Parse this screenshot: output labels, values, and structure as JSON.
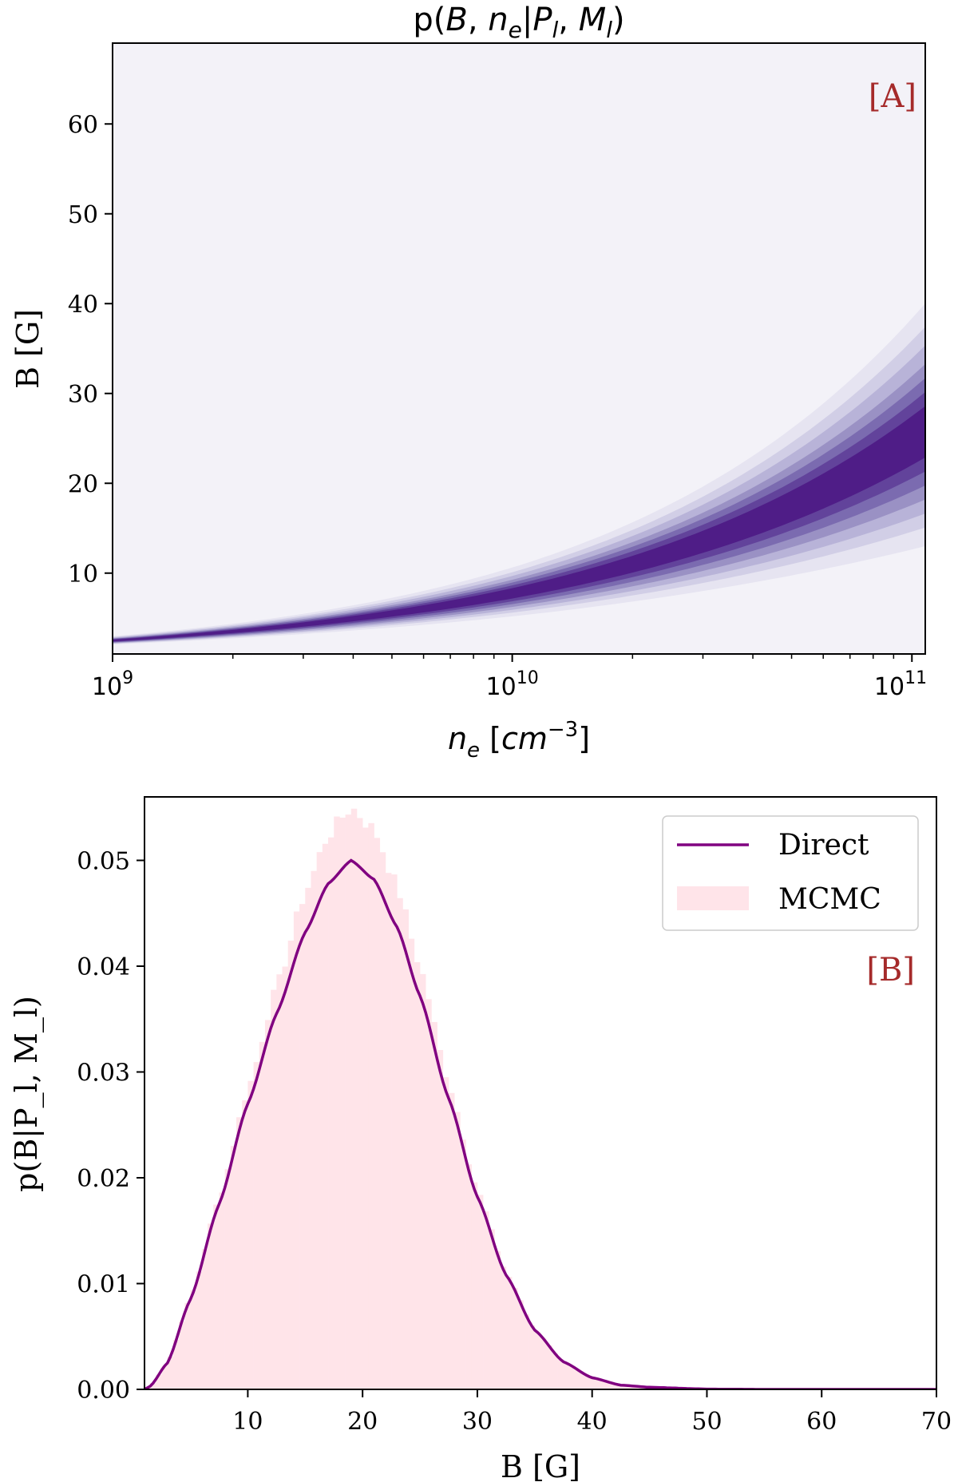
{
  "chart_data": [
    {
      "id": "A",
      "type": "contour",
      "title": "p(B, n_e | P_l, M_l)",
      "panel_label": "[A]",
      "xlabel": "n_e [cm^-3]",
      "ylabel": "B [G]",
      "xscale": "log",
      "xlim": [
        1000000000.0,
        108000000000.0
      ],
      "ylim": [
        1,
        69
      ],
      "xticks": [
        {
          "value": 1000000000.0,
          "base": "10",
          "exp": "9"
        },
        {
          "value": 10000000000.0,
          "base": "10",
          "exp": "10"
        },
        {
          "value": 100000000000.0,
          "base": "10",
          "exp": "11"
        }
      ],
      "yticks": [
        10,
        20,
        30,
        40,
        50,
        60
      ],
      "ridge": {
        "n_e": [
          1000000000.0,
          10000000000.0,
          100000000000.0
        ],
        "B": [
          2.5,
          7.8,
          25
        ]
      },
      "contour_levels": [
        {
          "level": 1,
          "lower_at_1e11": 12.5,
          "upper_at_1e11": 38.5,
          "color": "#e6e4f1"
        },
        {
          "level": 2,
          "lower_at_1e11": 14.5,
          "upper_at_1e11": 36.0,
          "color": "#d1cee6"
        },
        {
          "level": 3,
          "lower_at_1e11": 16.0,
          "upper_at_1e11": 34.0,
          "color": "#b8b3d8"
        },
        {
          "level": 4,
          "lower_at_1e11": 17.5,
          "upper_at_1e11": 32.0,
          "color": "#9a91c4"
        },
        {
          "level": 5,
          "lower_at_1e11": 19.0,
          "upper_at_1e11": 30.5,
          "color": "#7b6bb0"
        },
        {
          "level": 6,
          "lower_at_1e11": 20.5,
          "upper_at_1e11": 29.0,
          "color": "#62439b"
        },
        {
          "level": 7,
          "lower_at_1e11": 22.0,
          "upper_at_1e11": 27.5,
          "color": "#4f1d87"
        }
      ],
      "background_color": "#f3f2f8"
    },
    {
      "id": "B",
      "type": "line+histogram",
      "panel_label": "[B]",
      "xlabel": "B [G]",
      "ylabel": "p(B|P_l, M_l)",
      "xlim": [
        1,
        70
      ],
      "ylim": [
        0,
        0.056
      ],
      "xticks": [
        10,
        20,
        30,
        40,
        50,
        60,
        70
      ],
      "yticks": [
        "0.00",
        "0.01",
        "0.02",
        "0.03",
        "0.04",
        "0.05"
      ],
      "series": [
        {
          "name": "Direct",
          "kind": "line",
          "color": "#800080",
          "B": [
            1.5,
            3,
            5,
            7.5,
            10,
            12.5,
            15,
            17,
            19,
            21,
            23,
            25,
            27.5,
            30,
            32.5,
            35,
            37.5,
            40,
            42.5,
            45,
            50,
            55,
            60,
            70
          ],
          "p": [
            0.0003,
            0.0025,
            0.0085,
            0.0175,
            0.027,
            0.0355,
            0.0432,
            0.0478,
            0.05,
            0.0482,
            0.0437,
            0.0372,
            0.0275,
            0.0182,
            0.0108,
            0.0056,
            0.0026,
            0.0011,
            0.0004,
            0.0002,
            3e-05,
            0,
            0,
            0
          ]
        },
        {
          "name": "MCMC",
          "kind": "histogram",
          "color": "#ffe4e9",
          "peak_value": 0.055,
          "peak_at_B": 19,
          "bin_width": 0.5
        }
      ],
      "legend": {
        "position": "top-right",
        "entries": [
          "Direct",
          "MCMC"
        ]
      }
    }
  ]
}
